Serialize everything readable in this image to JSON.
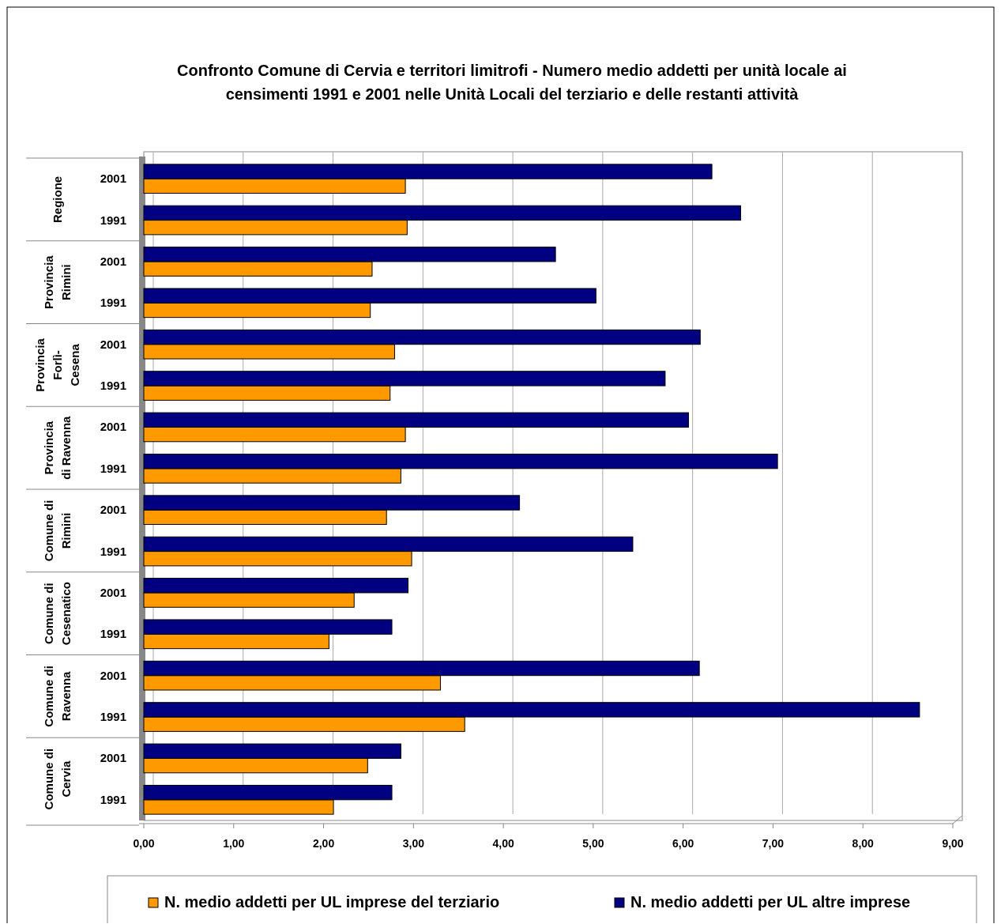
{
  "chart_data": {
    "type": "bar",
    "orientation": "horizontal",
    "title": "Confronto Comune di Cervia e territori limitrofi - Numero medio addetti per unità locale ai censimenti 1991 e 2001 nelle Unità Locali del terziario e delle restanti attività",
    "categories": [
      "2001",
      "1991",
      "2001",
      "1991",
      "2001",
      "1991",
      "2001",
      "1991",
      "2001",
      "1991",
      "2001",
      "1991",
      "2001",
      "1991",
      "2001",
      "1991"
    ],
    "annotations": [
      "Regione",
      "Provincia Rimini",
      "Provincia Forlì-Cesena",
      "Provincia di Ravenna",
      "Comune di Rimini",
      "Comune di Cesenatico",
      "Comune di Ravenna",
      "Comune di Cervia"
    ],
    "series": [
      {
        "name": "N. medio addetti per UL imprese del terziario",
        "color": "#ff9900",
        "values": [
          2.91,
          2.93,
          2.54,
          2.52,
          2.79,
          2.74,
          2.91,
          2.86,
          2.7,
          2.98,
          2.34,
          2.06,
          3.3,
          3.57,
          2.49,
          2.11
        ]
      },
      {
        "name": "N. medio addetti per UL altre imprese",
        "color": "#000080",
        "values": [
          6.32,
          6.64,
          4.58,
          5.03,
          6.19,
          5.8,
          6.06,
          7.05,
          4.18,
          5.44,
          2.94,
          2.76,
          6.18,
          8.63,
          2.86,
          2.76
        ]
      }
    ],
    "xlim": [
      0,
      9
    ],
    "xticks": [
      {
        "value": 0,
        "label": "0,00"
      },
      {
        "value": 1,
        "label": "1,00"
      },
      {
        "value": 2,
        "label": "2,00"
      },
      {
        "value": 3,
        "label": "3,00"
      },
      {
        "value": 4,
        "label": "4,00"
      },
      {
        "value": 5,
        "label": "5,00"
      },
      {
        "value": 6,
        "label": "6,00"
      },
      {
        "value": 7,
        "label": "7,00"
      },
      {
        "value": 8,
        "label": "8,00"
      },
      {
        "value": 9,
        "label": "9,00"
      }
    ],
    "grid": "x",
    "legend": "bottom"
  }
}
